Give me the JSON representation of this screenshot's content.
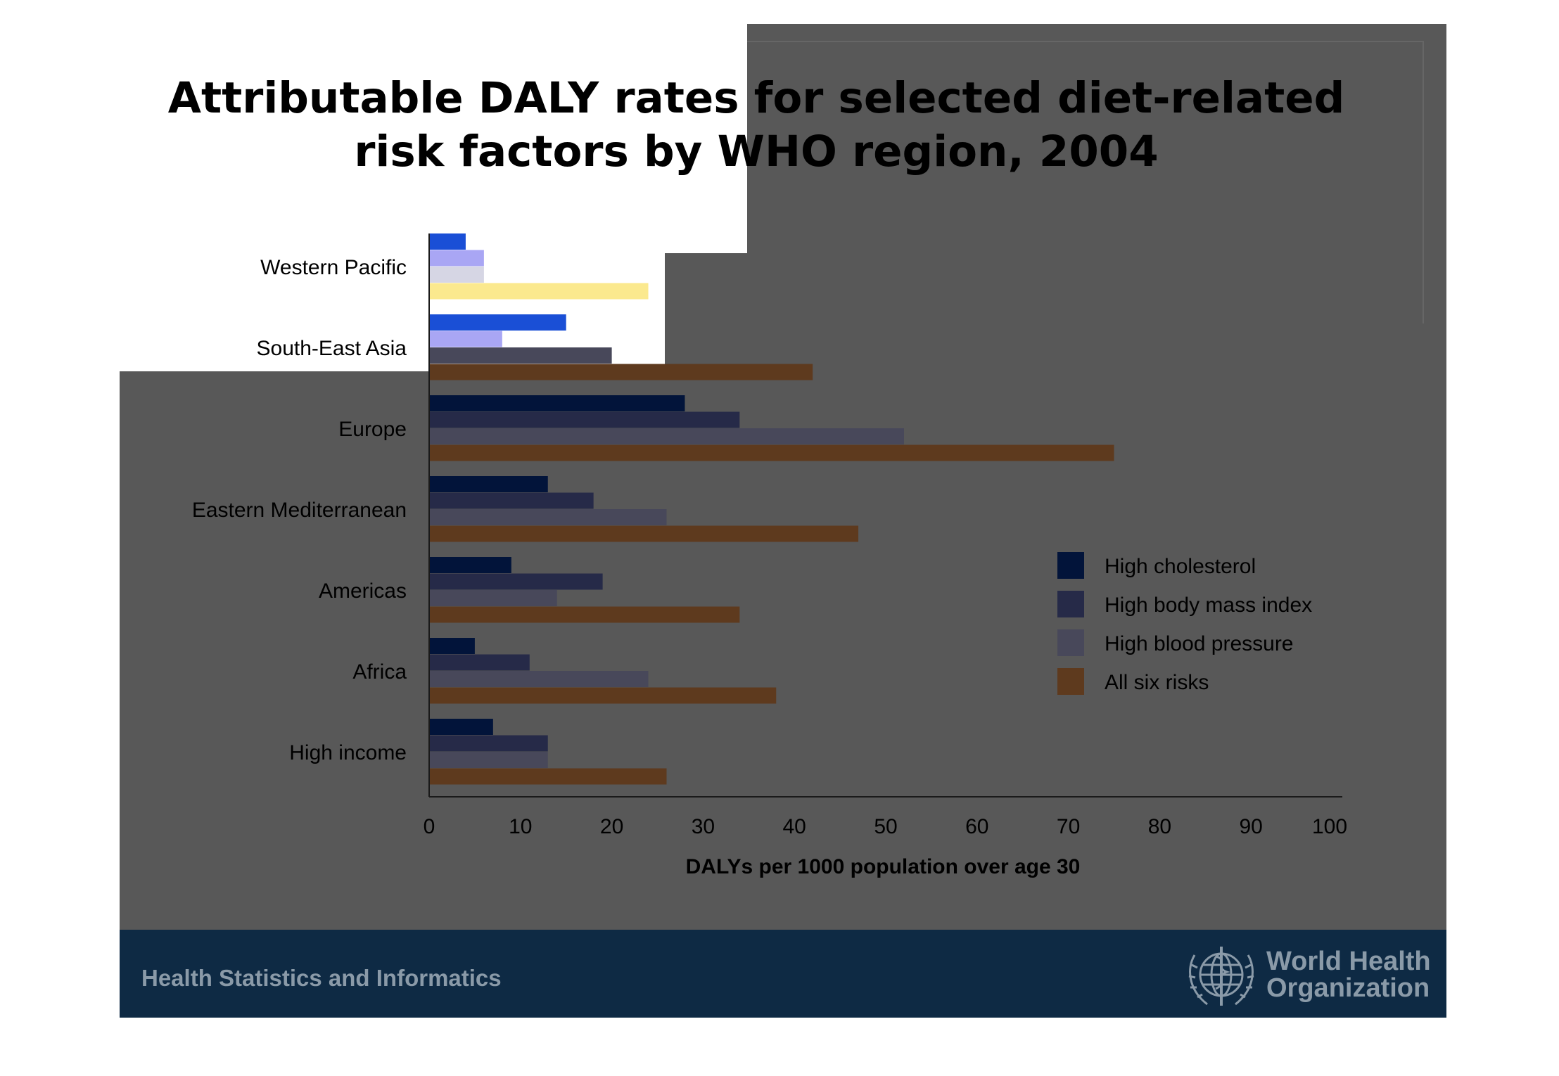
{
  "slide": {
    "title_line1": "Attributable DALY rates for selected diet-related",
    "title_line2": "risk factors by WHO region, 2004",
    "footer_text": "Health Statistics and Informatics",
    "org_name_line1": "World Health",
    "org_name_line2": "Organization",
    "colors": {
      "slide_background": "#585858",
      "footer_band": "#0e2a44",
      "footer_text": "#8a9aa8"
    }
  },
  "chart_data": {
    "type": "bar",
    "orientation": "horizontal",
    "title": "",
    "xlabel": "DALYs per 1000 population over age 30",
    "ylabel": "",
    "xlim": [
      0,
      100
    ],
    "xticks": [
      0,
      10,
      20,
      30,
      40,
      50,
      60,
      70,
      80,
      90,
      100
    ],
    "grid": false,
    "legend_position": "right",
    "categories": [
      "Western Pacific",
      "South-East Asia",
      "Europe",
      "Eastern Mediterranean",
      "Americas",
      "Africa",
      "High income"
    ],
    "series": [
      {
        "name": "High cholesterol",
        "color": "#02143a",
        "light_color": "#1a4fd6",
        "values": [
          4,
          15,
          28,
          13,
          9,
          5,
          7
        ]
      },
      {
        "name": "High body mass index",
        "color": "#262a48",
        "light_color": "#a9a6f4",
        "values": [
          6,
          8,
          34,
          18,
          19,
          11,
          13
        ]
      },
      {
        "name": "High blood pressure",
        "color": "#48485a",
        "light_color": "#d6d6e4",
        "values": [
          6,
          20,
          52,
          26,
          14,
          24,
          13
        ]
      },
      {
        "name": "All six risks",
        "color": "#5e3a1e",
        "light_color": "#fbe98e",
        "values": [
          24,
          42,
          75,
          47,
          34,
          38,
          26
        ]
      }
    ]
  }
}
